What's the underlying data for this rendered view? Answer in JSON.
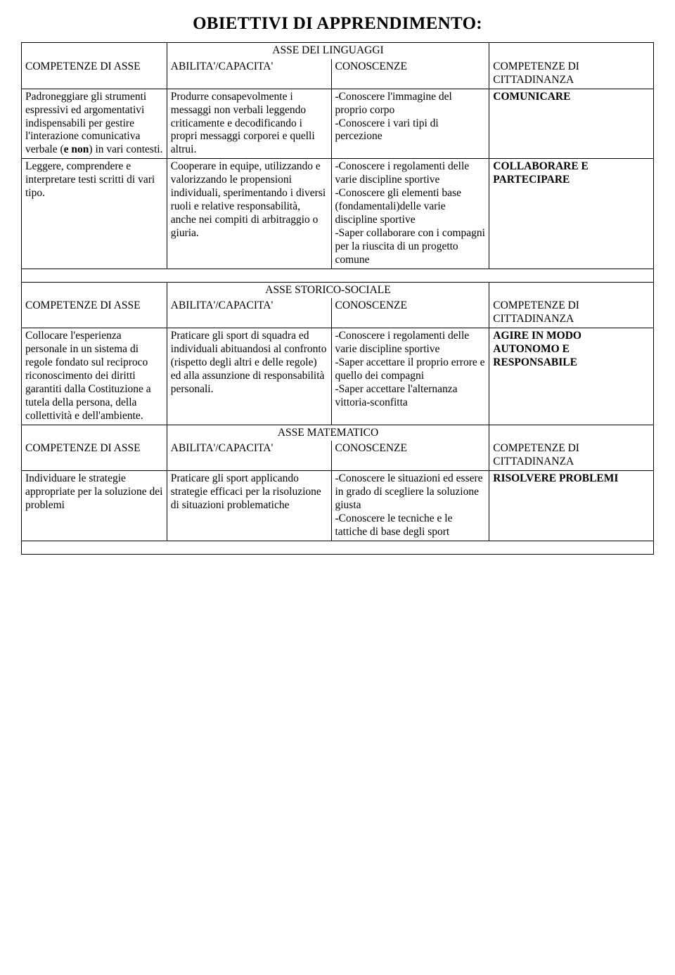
{
  "title": "OBIETTIVI DI APPRENDIMENTO:",
  "sections": {
    "linguaggi": {
      "header": "ASSE DEI LINGUAGGI",
      "colHeaders": {
        "c1": "COMPETENZE DI ASSE",
        "c2": "ABILITA'/CAPACITA'",
        "c3": "CONOSCENZE",
        "c4": "COMPETENZE DI CITTADINANZA"
      },
      "row1": {
        "c1_a": "Padroneggiare gli strumenti espressivi ed argomentativi indispensabili per gestire l'interazione comunicativa verbale (",
        "c1_bold": "e non",
        "c1_b": ") in vari contesti.",
        "c2": "Produrre consapevolmente i messaggi non verbali leggendo criticamente e decodificando i propri messaggi corporei e quelli altrui.",
        "c3": "-Conoscere l'immagine del proprio corpo\n-Conoscere i vari tipi di percezione",
        "c4": "COMUNICARE"
      },
      "row2": {
        "c1": "Leggere, comprendere e interpretare testi scritti di vari tipo.",
        "c2": "Cooperare in equipe, utilizzando e valorizzando le propensioni individuali, sperimentando i diversi ruoli e relative responsabilità, anche nei compiti di arbitraggio o giuria.",
        "c3": "-Conoscere i regolamenti delle varie discipline sportive\n-Conoscere gli elementi base (fondamentali)delle varie discipline sportive\n-Saper collaborare con i compagni per la riuscita di un progetto comune",
        "c4": "COLLABORARE E PARTECIPARE"
      }
    },
    "storico": {
      "header": "ASSE STORICO-SOCIALE",
      "colHeaders": {
        "c1": "COMPETENZE DI ASSE",
        "c2": "ABILITA'/CAPACITA'",
        "c3": "CONOSCENZE",
        "c4": "COMPETENZE DI CITTADINANZA"
      },
      "row1": {
        "c1": "Collocare l'esperienza personale in un sistema di regole fondato sul reciproco riconoscimento dei diritti garantiti dalla Costituzione a tutela della persona, della collettività e dell'ambiente.",
        "c2": "Praticare gli sport di squadra  ed individuali abituandosi al confronto (rispetto degli altri e delle regole) ed alla assunzione di responsabilità personali.",
        "c3": "-Conoscere i regolamenti delle varie discipline sportive\n-Saper accettare il proprio errore e quello dei compagni\n-Saper accettare l'alternanza vittoria-sconfitta",
        "c4": "AGIRE IN MODO AUTONOMO E RESPONSABILE"
      }
    },
    "matematico": {
      "header": "ASSE MATEMATICO",
      "colHeaders": {
        "c1": "COMPETENZE DI ASSE",
        "c2": "ABILITA'/CAPACITA'",
        "c3": "CONOSCENZE",
        "c4": "COMPETENZE DI CITTADINANZA"
      },
      "row1": {
        "c1": "Individuare le strategie appropriate per la soluzione dei problemi",
        "c2": "Praticare gli sport applicando strategie efficaci per la risoluzione di situazioni problematiche",
        "c3": "-Conoscere le situazioni ed essere in grado di scegliere la soluzione giusta\n-Conoscere le tecniche e le tattiche di base degli sport",
        "c4": "RISOLVERE PROBLEMI"
      }
    }
  }
}
